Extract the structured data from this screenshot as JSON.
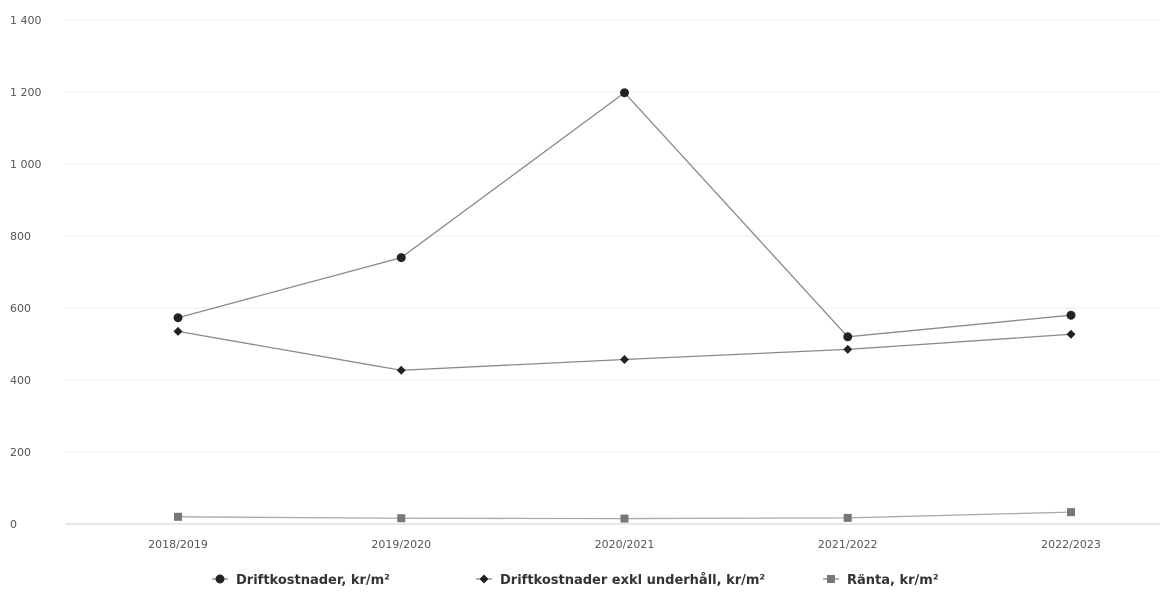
{
  "chart_data": {
    "type": "line",
    "categories": [
      "2018/2019",
      "2019/2020",
      "2020/2021",
      "2021/2022",
      "2022/2023"
    ],
    "ylim": [
      0,
      1400
    ],
    "yticks": [
      0,
      200,
      400,
      600,
      800,
      1000,
      1200,
      1400
    ],
    "ytick_labels": [
      "0",
      "200",
      "400",
      "600",
      "800",
      "1 000",
      "1 200",
      "1 400"
    ],
    "grid": true,
    "legend_position": "bottom-center",
    "series": [
      {
        "name": "Driftkostnader, kr/m²",
        "values": [
          573,
          740,
          1198,
          520,
          580
        ],
        "marker": "circle",
        "color": "#222222"
      },
      {
        "name": "Driftkostnader exkl underhåll, kr/m²",
        "values": [
          535,
          427,
          457,
          485,
          527
        ],
        "marker": "diamond",
        "color": "#222222"
      },
      {
        "name": "Ränta, kr/m²",
        "values": [
          20,
          16,
          15,
          17,
          33
        ],
        "marker": "square",
        "color": "#777777"
      }
    ]
  }
}
